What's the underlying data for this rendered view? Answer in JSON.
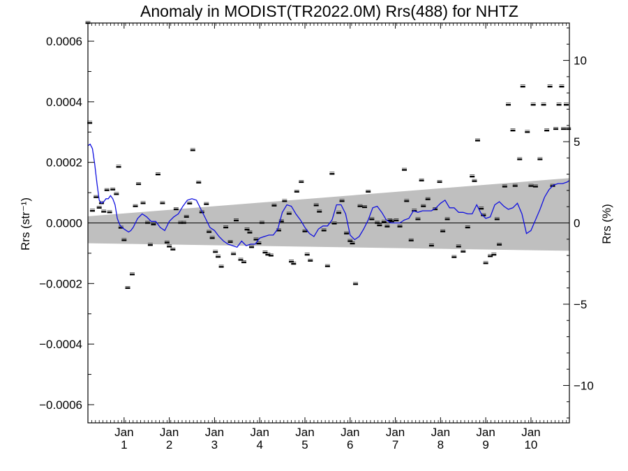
{
  "chart_data": {
    "type": "scatter",
    "title": "Anomaly in MODIST(TR2022.0M) Rrs(488) for NHTZ",
    "ylabel": "Rrs (str⁻¹)",
    "y2label": "Rrs (%)",
    "ylim": [
      -0.00066,
      0.00066
    ],
    "y2lim": [
      -12.3,
      12.3
    ],
    "xlim": [
      0,
      10.65
    ],
    "grid": false,
    "left_ticks": [
      {
        "v": 0.0006,
        "label": "0.0006"
      },
      {
        "v": 0.0004,
        "label": "0.0004"
      },
      {
        "v": 0.0002,
        "label": "0.0002"
      },
      {
        "v": 0.0,
        "label": "0.0000"
      },
      {
        "v": -0.0002,
        "label": "−0.0002"
      },
      {
        "v": -0.0004,
        "label": "−0.0004"
      },
      {
        "v": -0.0006,
        "label": "−0.0006"
      }
    ],
    "right_ticks": [
      {
        "v": 10,
        "label": "10"
      },
      {
        "v": 5,
        "label": "5"
      },
      {
        "v": 0,
        "label": "0"
      },
      {
        "v": -5,
        "label": "−5"
      },
      {
        "v": -10,
        "label": "−10"
      }
    ],
    "x_ticks": [
      {
        "v": 0.8,
        "month": "Jan",
        "year": "1"
      },
      {
        "v": 1.8,
        "month": "Jan",
        "year": "2"
      },
      {
        "v": 2.8,
        "month": "Jan",
        "year": "3"
      },
      {
        "v": 3.8,
        "month": "Jan",
        "year": "4"
      },
      {
        "v": 4.8,
        "month": "Jan",
        "year": "5"
      },
      {
        "v": 5.8,
        "month": "Jan",
        "year": "6"
      },
      {
        "v": 6.8,
        "month": "Jan",
        "year": "7"
      },
      {
        "v": 7.8,
        "month": "Jan",
        "year": "8"
      },
      {
        "v": 8.8,
        "month": "Jan",
        "year": "9"
      },
      {
        "v": 9.8,
        "month": "Jan",
        "year": "10"
      }
    ],
    "trend_band": {
      "x": [
        0,
        10.65
      ],
      "upper": [
        2.2e-05,
        0.000148
      ],
      "lower": [
        -6.7e-05,
        -9.2e-05
      ]
    },
    "zero_line": 0,
    "points": {
      "x": [
        0.0,
        0.04,
        0.1,
        0.18,
        0.25,
        0.3,
        0.35,
        0.42,
        0.48,
        0.55,
        0.63,
        0.68,
        0.73,
        0.8,
        0.88,
        0.98,
        1.05,
        1.12,
        1.22,
        1.32,
        1.38,
        1.45,
        1.55,
        1.65,
        1.75,
        1.8,
        1.88,
        1.95,
        2.05,
        2.12,
        2.18,
        2.25,
        2.32,
        2.45,
        2.52,
        2.62,
        2.68,
        2.75,
        2.82,
        2.88,
        2.95,
        3.05,
        3.15,
        3.22,
        3.28,
        3.38,
        3.45,
        3.52,
        3.58,
        3.62,
        3.72,
        3.78,
        3.85,
        3.92,
        3.98,
        4.05,
        4.12,
        4.22,
        4.28,
        4.35,
        4.45,
        4.5,
        4.55,
        4.62,
        4.72,
        4.8,
        4.85,
        4.92,
        5.05,
        5.12,
        5.22,
        5.3,
        5.4,
        5.45,
        5.55,
        5.62,
        5.72,
        5.8,
        5.85,
        5.92,
        6.02,
        6.12,
        6.2,
        6.28,
        6.4,
        6.45,
        6.55,
        6.62,
        6.68,
        6.72,
        6.82,
        6.9,
        7.0,
        7.05,
        7.15,
        7.22,
        7.3,
        7.38,
        7.42,
        7.52,
        7.6,
        7.68,
        7.78,
        7.85,
        7.95,
        8.1,
        8.2,
        8.3,
        8.4,
        8.5,
        8.55,
        8.62,
        8.7,
        8.75,
        8.8,
        8.9,
        8.98,
        9.05,
        9.1,
        9.22,
        9.3,
        9.4,
        9.45,
        9.55,
        9.62,
        9.72,
        9.8,
        9.85,
        9.9,
        10.0,
        10.08,
        10.15,
        10.22,
        10.28,
        10.35,
        10.42,
        10.48,
        10.52,
        10.58,
        10.63
      ],
      "y": [
        0.00066,
        0.00033,
        4e-05,
        8.5e-05,
        5e-05,
        6.5e-05,
        3.7e-05,
        0.000108,
        3.5e-05,
        0.00011,
        9.5e-05,
        0.000185,
        -1.6e-05,
        -5.7e-05,
        -0.000215,
        -0.00017,
        5.5e-05,
        0.000128,
        6.5e-05,
        0.0,
        -7.3e-05,
        -5e-06,
        0.00016,
        6.5e-05,
        -6.5e-05,
        -7.8e-05,
        -8.8e-05,
        4.5e-05,
        0.0,
        0.0,
        2e-05,
        6.4e-05,
        0.00024,
        0.000133,
        3.5e-05,
        6.2e-05,
        -3e-05,
        -5e-05,
        -9.6e-05,
        -0.000112,
        -0.000145,
        -1.5e-05,
        -6.3e-05,
        -0.000103,
        8e-06,
        -0.000122,
        -0.00013,
        -2.2e-05,
        -3.2e-05,
        -8e-05,
        -5.5e-05,
        -6.8e-05,
        0.0,
        -9.8e-05,
        -0.000105,
        -0.000108,
        5.7e-05,
        -2.5e-05,
        5e-06,
        7.2e-05,
        3e-05,
        -0.000128,
        -0.000135,
        0.000103,
        0.000135,
        -2.8e-05,
        -0.000105,
        -0.000125,
        5.8e-05,
        3.7e-05,
        -2.5e-05,
        -0.000143,
        0.000162,
        -2e-06,
        3.3e-05,
        7.2e-05,
        -3.5e-05,
        -6e-05,
        -6.8e-05,
        -0.000202,
        5.5e-05,
        5.2e-05,
        0.000103,
        1.2e-05,
        0.0,
        -8e-06,
        3e-06,
        -1.2e-05,
        8e-06,
        5e-06,
        8e-06,
        -1.2e-05,
        0.000175,
        7.2e-05,
        -5.8e-05,
        4e-05,
        1.2e-05,
        0.00014,
        5.5e-05,
        7.8e-05,
        -7.5e-05,
        4.5e-05,
        0.000135,
        -2.8e-05,
        1.2e-05,
        -0.000113,
        -7.8e-05,
        -9.5e-05,
        -1.5e-05,
        0.000153,
        0.000138,
        0.000272,
        4.7e-05,
        2.5e-05,
        -0.000133,
        -0.00011,
        -0.000105,
        1.2e-05,
        -7.2e-05,
        0.00012,
        0.00039,
        0.000305,
        0.000122,
        0.00021,
        0.00045,
        0.0003,
        0.000122,
        0.00039,
        0.00012,
        0.00021,
        0.00039,
        0.000305,
        0.00045,
        0.000122,
        0.00031,
        0.00039,
        0.00045,
        0.00031,
        0.00039,
        0.00031
      ]
    },
    "running_mean": {
      "x": [
        0.0,
        0.05,
        0.1,
        0.15,
        0.2,
        0.25,
        0.3,
        0.35,
        0.4,
        0.45,
        0.5,
        0.55,
        0.6,
        0.65,
        0.7,
        0.75,
        0.8,
        0.85,
        0.9,
        0.95,
        1.0,
        1.1,
        1.2,
        1.3,
        1.4,
        1.5,
        1.6,
        1.7,
        1.8,
        1.9,
        2.0,
        2.1,
        2.2,
        2.3,
        2.4,
        2.5,
        2.6,
        2.7,
        2.8,
        2.9,
        3.0,
        3.1,
        3.2,
        3.3,
        3.4,
        3.5,
        3.6,
        3.7,
        3.8,
        3.9,
        4.0,
        4.1,
        4.2,
        4.3,
        4.4,
        4.5,
        4.6,
        4.7,
        4.8,
        4.9,
        5.0,
        5.1,
        5.2,
        5.3,
        5.4,
        5.5,
        5.6,
        5.7,
        5.8,
        5.9,
        6.0,
        6.1,
        6.2,
        6.3,
        6.4,
        6.5,
        6.6,
        6.7,
        6.8,
        6.9,
        7.0,
        7.1,
        7.2,
        7.3,
        7.4,
        7.5,
        7.6,
        7.7,
        7.8,
        7.9,
        8.0,
        8.1,
        8.2,
        8.3,
        8.4,
        8.5,
        8.6,
        8.7,
        8.8,
        8.9,
        9.0,
        9.1,
        9.2,
        9.3,
        9.4,
        9.5,
        9.6,
        9.7,
        9.8,
        9.9,
        10.0,
        10.1,
        10.2,
        10.3,
        10.4,
        10.5,
        10.6,
        10.65
      ],
      "y": [
        0.000255,
        0.00026,
        0.000245,
        0.000195,
        0.00013,
        7.5e-05,
        6.5e-05,
        7e-05,
        8e-05,
        8e-05,
        9e-05,
        8e-05,
        6e-05,
        1.5e-05,
        -5e-06,
        -1.5e-05,
        -2e-05,
        -2.5e-05,
        -3e-05,
        -2.5e-05,
        -1.5e-05,
        1.5e-05,
        3e-05,
        2e-05,
        5e-06,
        5e-06,
        -1.5e-05,
        -2.5e-05,
        5e-06,
        2e-05,
        3e-05,
        5.5e-05,
        7.5e-05,
        8e-05,
        7.5e-05,
        4.5e-05,
        1.5e-05,
        -1.5e-05,
        -2.5e-05,
        -4.5e-05,
        -6e-05,
        -7e-05,
        -7.5e-05,
        -8e-05,
        -6e-05,
        -7.5e-05,
        -7e-05,
        -7e-05,
        -5e-05,
        -4.5e-05,
        -4e-05,
        -4e-05,
        -2e-05,
        3.5e-05,
        6e-05,
        5.5e-05,
        3e-05,
        1e-05,
        -1.5e-05,
        -3.5e-05,
        -4.5e-05,
        -2e-05,
        -1e-05,
        -1e-05,
        1e-05,
        6e-05,
        6e-05,
        3e-05,
        -4e-05,
        -5.5e-05,
        -4.5e-05,
        -2e-05,
        1e-05,
        5e-05,
        5.5e-05,
        3.5e-05,
        1e-05,
        0.0,
        0.0,
        0.0,
        1e-05,
        1.5e-05,
        4e-05,
        3.5e-05,
        4e-05,
        4e-05,
        4e-05,
        5e-05,
        6.5e-05,
        7.5e-05,
        5e-05,
        5e-05,
        3.5e-05,
        3.5e-05,
        3e-05,
        3e-05,
        6e-05,
        3e-05,
        1.5e-05,
        2e-05,
        6e-05,
        7e-05,
        5.5e-05,
        4.5e-05,
        5e-05,
        6.5e-05,
        3e-05,
        -3.5e-05,
        -2.5e-05,
        1e-05,
        4.5e-05,
        8.5e-05,
        0.00011,
        0.000125,
        0.00013,
        0.00013,
        0.000135,
        0.00014
      ]
    }
  }
}
